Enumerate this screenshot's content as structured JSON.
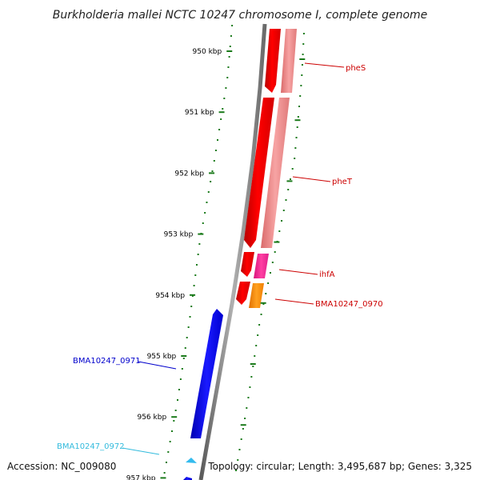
{
  "title": "Burkholderia mallei NCTC 10247 chromosome I, complete genome",
  "footer": {
    "accession": "Accession: NC_009080",
    "topology": "Topology: circular; Length: 3,495,687 bp; Genes: 3,325"
  },
  "kbp_marks": [
    {
      "id": "950",
      "label": "950 kbp"
    },
    {
      "id": "951",
      "label": "951 kbp"
    },
    {
      "id": "952",
      "label": "952 kbp"
    },
    {
      "id": "953",
      "label": "953 kbp"
    },
    {
      "id": "954",
      "label": "954 kbp"
    },
    {
      "id": "955",
      "label": "955 kbp"
    },
    {
      "id": "956",
      "label": "956 kbp"
    },
    {
      "id": "957",
      "label": "957 kbp"
    }
  ],
  "genes": [
    {
      "id": "pheS",
      "label": "pheS",
      "strand": "forward",
      "color": "#cc0000"
    },
    {
      "id": "pheT",
      "label": "pheT",
      "strand": "forward",
      "color": "#cc0000"
    },
    {
      "id": "ihfA",
      "label": "ihfA",
      "strand": "forward",
      "color": "#cc0000"
    },
    {
      "id": "BMA10247_0970",
      "label": "BMA10247_0970",
      "strand": "forward",
      "color": "#cc0000"
    },
    {
      "id": "BMA10247_0971",
      "label": "BMA10247_0971",
      "strand": "reverse",
      "color": "#0000cc"
    },
    {
      "id": "BMA10247_0972",
      "label": "BMA10247_0972",
      "strand": "reverse",
      "color": "#33bbdd"
    }
  ],
  "colors": {
    "backbone": "#808080",
    "tick_green": "#1a7a1a",
    "gene_red": "#ff0000",
    "gene_pink_light": "#f08a8a",
    "gene_magenta": "#ff3399",
    "gene_orange": "#ff8800",
    "gene_blue": "#0000ee",
    "gene_cyan": "#33bbee"
  }
}
